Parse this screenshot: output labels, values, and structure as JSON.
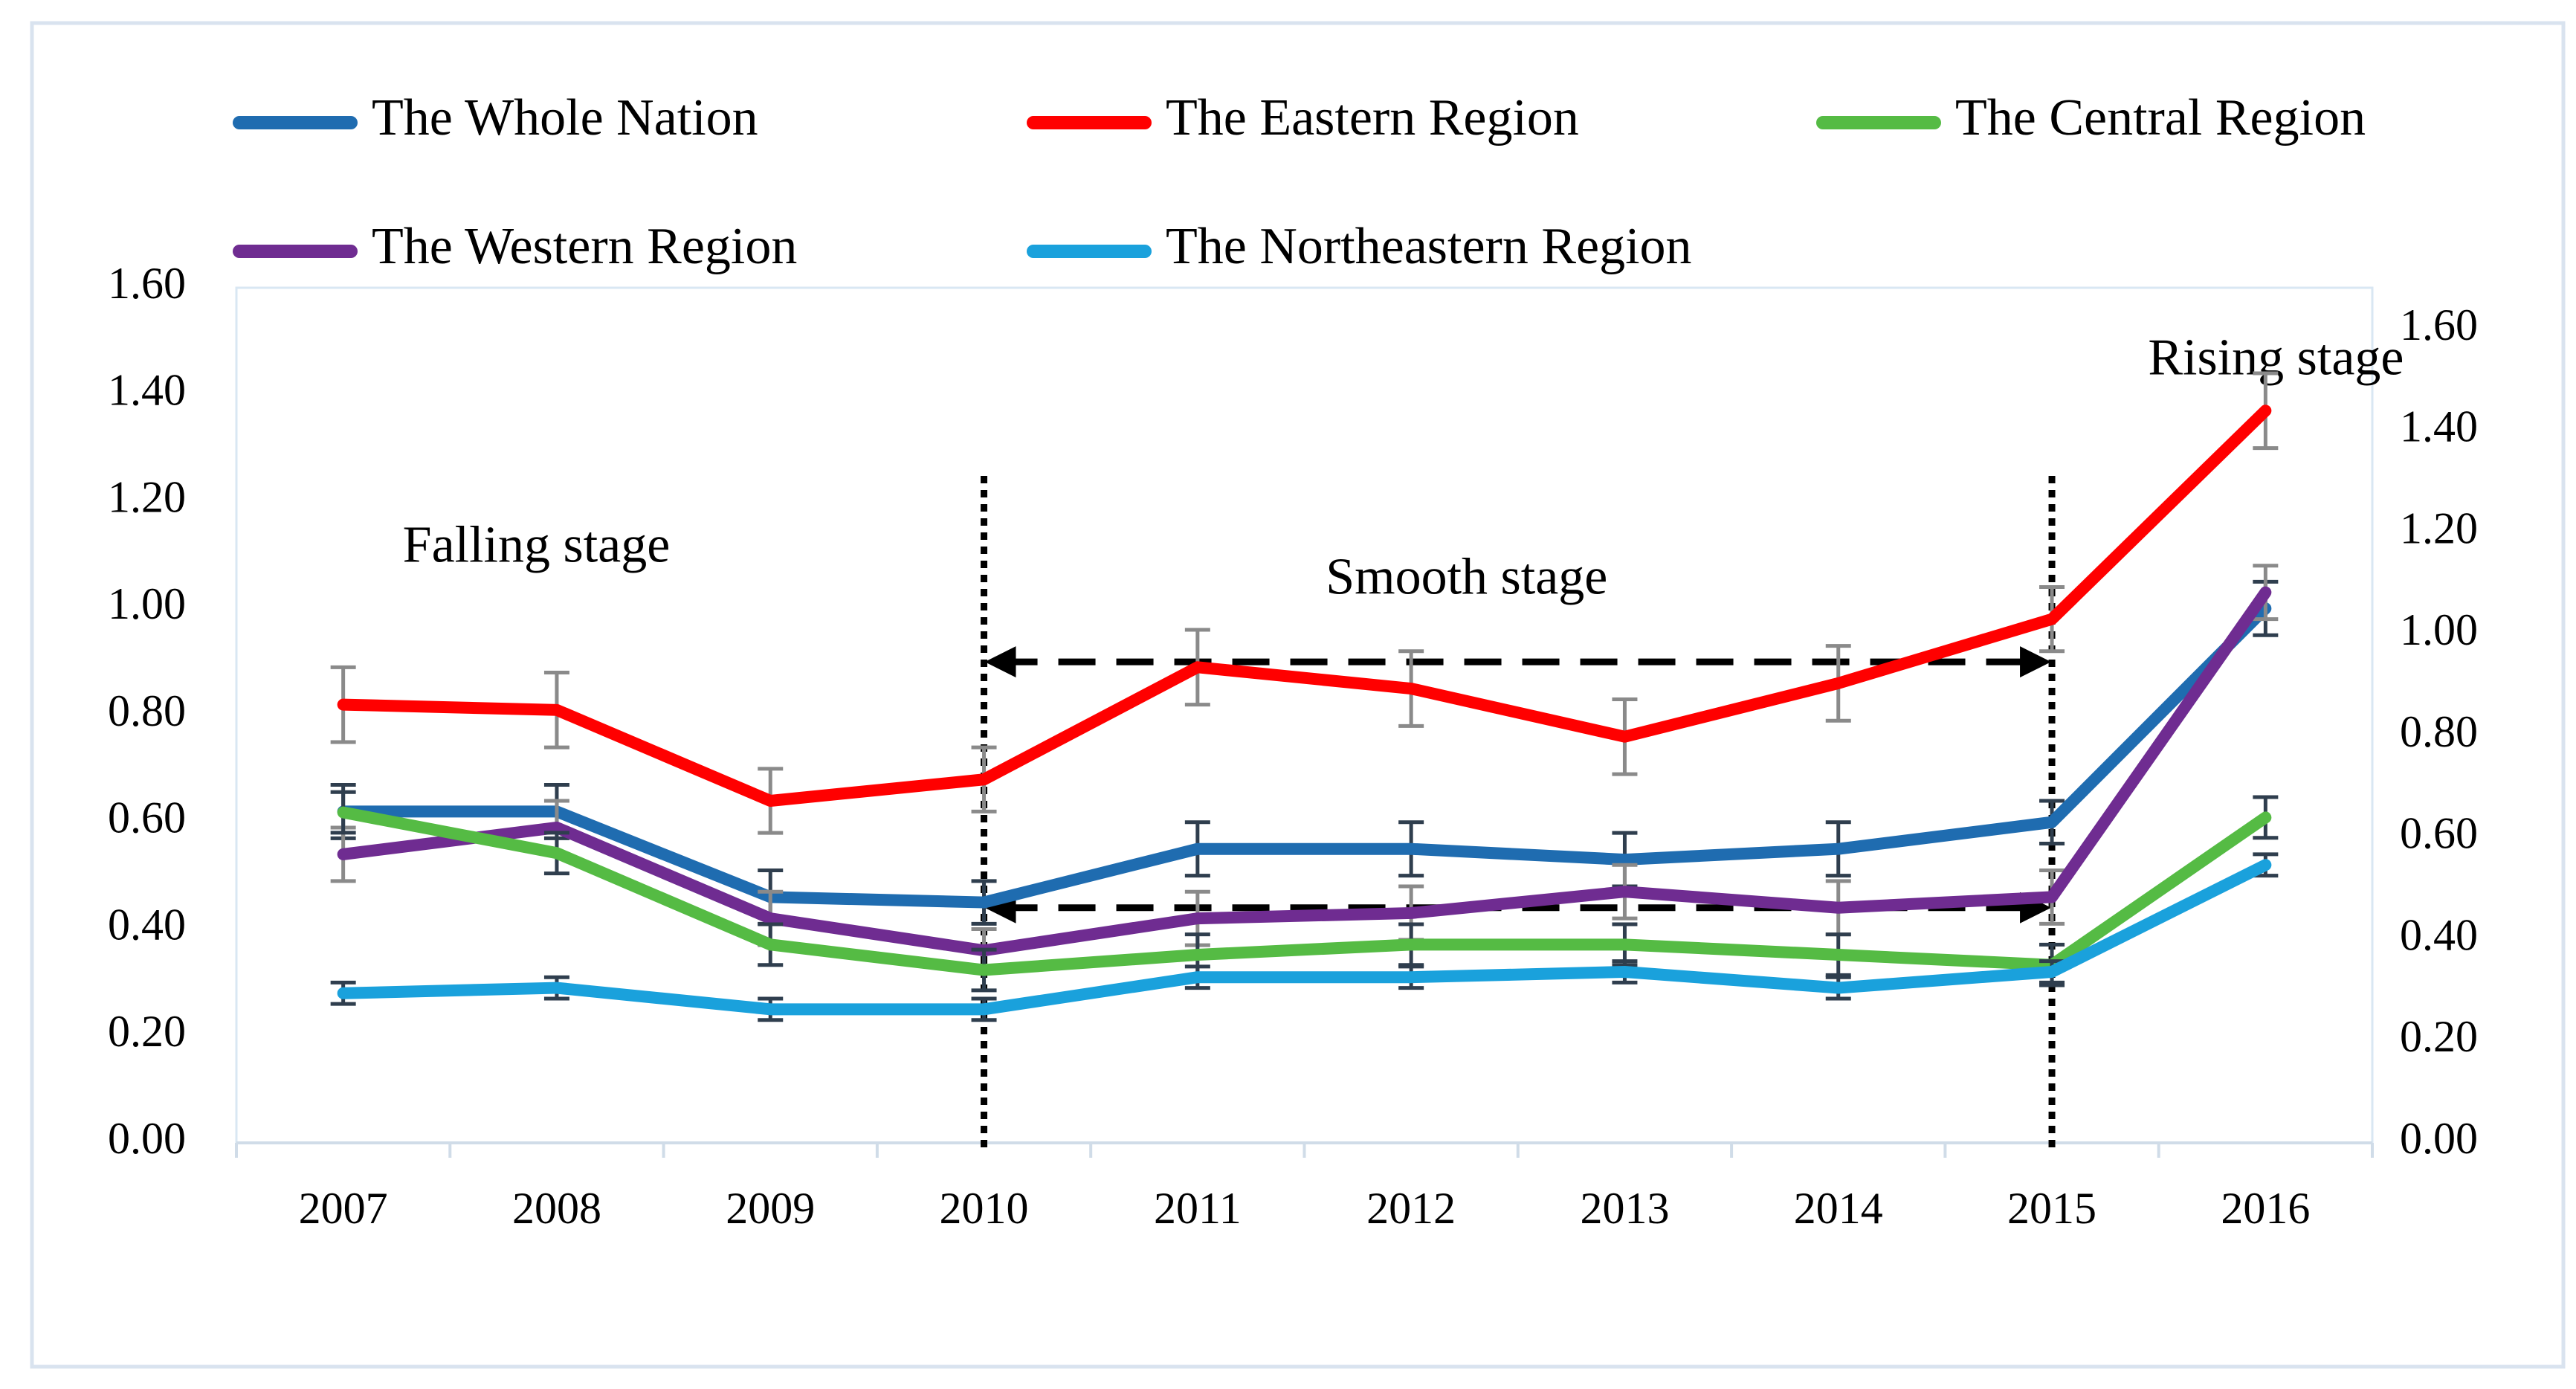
{
  "chart_data": {
    "type": "line",
    "title": "",
    "xlabel": "",
    "ylabel": "",
    "ylim": [
      0,
      1.6
    ],
    "y2lim": [
      0,
      1.6
    ],
    "y_ticks": [
      "0.00",
      "0.20",
      "0.40",
      "0.60",
      "0.80",
      "1.00",
      "1.20",
      "1.40",
      "1.60"
    ],
    "y2_ticks": [
      "0.00",
      "0.20",
      "0.40",
      "0.60",
      "0.80",
      "1.00",
      "1.20",
      "1.40",
      "1.60"
    ],
    "categories": [
      "2007",
      "2008",
      "2009",
      "2010",
      "2011",
      "2012",
      "2013",
      "2014",
      "2015",
      "2016"
    ],
    "grid": false,
    "legend_position": "top",
    "series": [
      {
        "name": "The Whole Nation",
        "color": "#1F6CB0",
        "axis": "left",
        "values": [
          0.62,
          0.62,
          0.46,
          0.45,
          0.55,
          0.55,
          0.53,
          0.55,
          0.6,
          1.0
        ],
        "error": [
          0.05,
          0.05,
          0.05,
          0.04,
          0.05,
          0.05,
          0.05,
          0.05,
          0.04,
          0.05
        ],
        "error_color": "#2F3E4E"
      },
      {
        "name": "The Eastern Region",
        "color": "#FF0000",
        "axis": "left",
        "values": [
          0.82,
          0.81,
          0.64,
          0.68,
          0.89,
          0.85,
          0.76,
          0.86,
          0.98,
          1.37
        ],
        "error": [
          0.07,
          0.07,
          0.06,
          0.06,
          0.07,
          0.07,
          0.07,
          0.07,
          0.06,
          0.07
        ],
        "error_color": "#8A8A8A"
      },
      {
        "name": "The Central Region",
        "color": "#55BB44",
        "axis": "right",
        "values": [
          0.65,
          0.57,
          0.39,
          0.34,
          0.37,
          0.39,
          0.39,
          0.37,
          0.35,
          0.64
        ],
        "error": [
          0.04,
          0.04,
          0.04,
          0.04,
          0.04,
          0.04,
          0.04,
          0.04,
          0.04,
          0.04
        ],
        "error_color": "#2F3E4E"
      },
      {
        "name": "The Western Region",
        "color": "#6F2C91",
        "axis": "left",
        "values": [
          0.54,
          0.59,
          0.42,
          0.36,
          0.42,
          0.43,
          0.47,
          0.44,
          0.46,
          1.03
        ],
        "error": [
          0.05,
          0.05,
          0.05,
          0.04,
          0.05,
          0.05,
          0.05,
          0.05,
          0.05,
          0.05
        ],
        "error_color": "#8A8A8A"
      },
      {
        "name": "The Northeastern Region",
        "color": "#1AA1DC",
        "axis": "left",
        "values": [
          0.28,
          0.29,
          0.25,
          0.25,
          0.31,
          0.31,
          0.32,
          0.29,
          0.32,
          0.52
        ],
        "error": [
          0.02,
          0.02,
          0.02,
          0.02,
          0.02,
          0.02,
          0.02,
          0.02,
          0.02,
          0.02
        ],
        "error_color": "#2F3E4E"
      }
    ],
    "annotations": [
      {
        "text": "Falling stage",
        "x": "2007",
        "y": 1.11
      },
      {
        "text": "Smooth stage",
        "x": "2011.6",
        "y": 1.05
      },
      {
        "text": "Rising stage",
        "x": "2015.45",
        "y": 1.46
      }
    ],
    "stage_dividers": [
      "2010",
      "2015"
    ],
    "smooth_arrows": [
      0.9,
      0.44
    ]
  }
}
